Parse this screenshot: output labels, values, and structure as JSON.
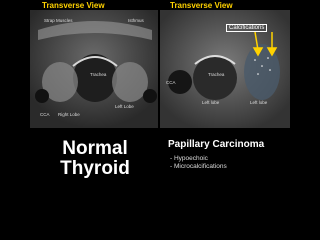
{
  "left_panel": {
    "title": "Transverse View",
    "labels": [
      "Strap Muscles",
      "Isthmus",
      "Trachea",
      "CCA",
      "Right Lobe",
      "Left Lobe"
    ]
  },
  "right_panel": {
    "title": "Transverse View",
    "labels": [
      "Calcifications",
      "CCA",
      "Trachea",
      "Left lobe",
      "Left lobe"
    ]
  },
  "left_caption": {
    "line1": "Normal",
    "line2": "Thyroid"
  },
  "right_caption": {
    "title": "Papillary Carcinoma",
    "bullets": [
      "- Hypoechoic",
      "- Microcalcifications"
    ]
  }
}
